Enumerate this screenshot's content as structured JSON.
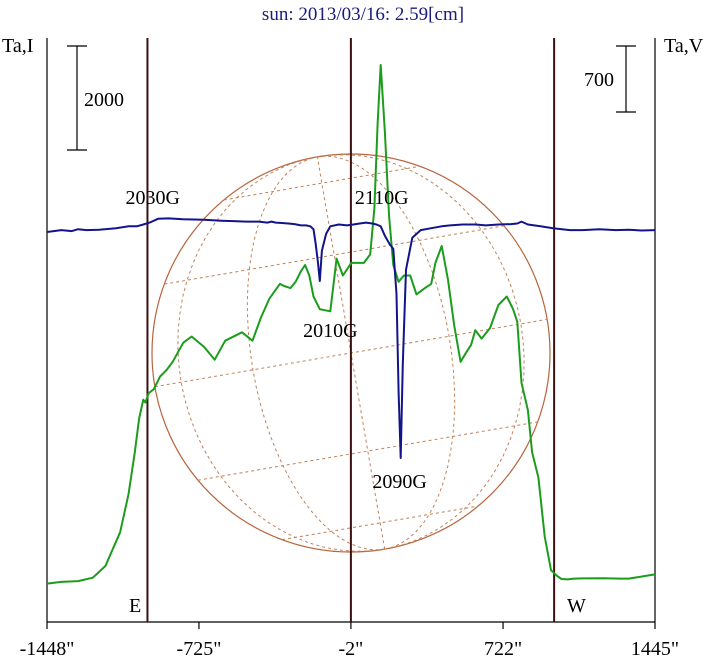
{
  "chart_data": {
    "type": "line",
    "title": "sun: 2013/03/16: 2.59[cm]",
    "left_axis_label": "Ta,I",
    "right_axis_label": "Ta,V",
    "left_scale_bar_label": "2000",
    "right_scale_bar_label": "700",
    "x_unit": "arcsec",
    "xlim": [
      -1448,
      1445
    ],
    "x_tick_labels": [
      "-1448\"",
      "-725\"",
      "-2\"",
      "722\"",
      "1445\""
    ],
    "x_ticks": [
      -1448,
      -725,
      -2,
      722,
      1445
    ],
    "limb_markers": {
      "east_label": "E",
      "west_label": "W",
      "east_x": -970,
      "west_x": 965
    },
    "center_line_x": -2,
    "grid": false,
    "region_labels": [
      {
        "label": "2030G",
        "x": -945,
        "y": 1.0
      },
      {
        "label": "2110G",
        "x": 145,
        "y": 1.0
      },
      {
        "label": "2010G",
        "x": -100,
        "y": 0.0
      },
      {
        "label": "2090G",
        "x": 230,
        "y": -1.0
      }
    ],
    "series": [
      {
        "color": "#1c9c1c",
        "x": [
          -1448,
          -1380,
          -1300,
          -1230,
          -1170,
          -1100,
          -1060,
          -1030,
          -1010,
          -990,
          -980,
          -965,
          -940,
          -910,
          -880,
          -850,
          -800,
          -760,
          -700,
          -650,
          -600,
          -520,
          -470,
          -430,
          -390,
          -340,
          -320,
          -290,
          -265,
          -240,
          -220,
          -200,
          -180,
          -150,
          -100,
          -70,
          -40,
          0,
          60,
          90,
          110,
          125,
          140,
          160,
          180,
          200,
          225,
          250,
          280,
          310,
          350,
          380,
          400,
          430,
          460,
          490,
          520,
          550,
          570,
          590,
          620,
          660,
          700,
          740,
          770,
          790,
          810,
          840,
          860,
          890,
          920,
          950,
          980,
          1000,
          1030,
          1060,
          1100,
          1200,
          1280,
          1320,
          1445
        ],
        "y": [
          80,
          120,
          140,
          220,
          500,
          1300,
          2200,
          3200,
          4000,
          4450,
          4380,
          4600,
          4700,
          5000,
          5150,
          5350,
          5800,
          5950,
          5700,
          5400,
          5850,
          6050,
          5850,
          6400,
          6850,
          7200,
          7150,
          7100,
          7250,
          7500,
          7650,
          7400,
          6900,
          6600,
          6550,
          7800,
          7400,
          7700,
          7700,
          7900,
          9000,
          11000,
          12400,
          10800,
          8800,
          7650,
          7250,
          7400,
          7400,
          6950,
          7100,
          7200,
          7700,
          8100,
          7300,
          6200,
          5350,
          5600,
          5750,
          6100,
          5900,
          6150,
          6700,
          6900,
          6600,
          6300,
          4850,
          4200,
          3200,
          2600,
          1200,
          400,
          260,
          190,
          180,
          200,
          205,
          210,
          200,
          200,
          300
        ]
      },
      {
        "color": "#14148a",
        "x": [
          -1448,
          -1380,
          -1330,
          -1300,
          -1260,
          -1200,
          -1120,
          -1060,
          -1020,
          -990,
          -960,
          -920,
          -870,
          -800,
          -700,
          -620,
          -560,
          -500,
          -440,
          -400,
          -380,
          -360,
          -330,
          -300,
          -270,
          -240,
          -215,
          -195,
          -180,
          -170,
          -160,
          -150,
          -140,
          -120,
          -100,
          -60,
          -20,
          10,
          40,
          70,
          100,
          120,
          140,
          160,
          180,
          200,
          215,
          225,
          235,
          245,
          260,
          290,
          330,
          380,
          430,
          470,
          530,
          590,
          640,
          700,
          760,
          790,
          810,
          840,
          900,
          960,
          1040,
          1100,
          1180,
          1260,
          1320,
          1380,
          1445
        ],
        "y": [
          0,
          10,
          5,
          15,
          10,
          12,
          20,
          30,
          30,
          40,
          50,
          70,
          72,
          68,
          65,
          60,
          58,
          55,
          55,
          50,
          55,
          50,
          48,
          45,
          42,
          35,
          35,
          30,
          15,
          -60,
          -150,
          -260,
          -100,
          -10,
          30,
          40,
          35,
          40,
          45,
          50,
          45,
          40,
          30,
          -20,
          -60,
          -90,
          -330,
          -850,
          -1200,
          -700,
          -200,
          -30,
          10,
          20,
          30,
          35,
          40,
          40,
          35,
          40,
          42,
          45,
          55,
          40,
          30,
          20,
          10,
          10,
          15,
          10,
          12,
          8,
          10
        ]
      }
    ]
  }
}
